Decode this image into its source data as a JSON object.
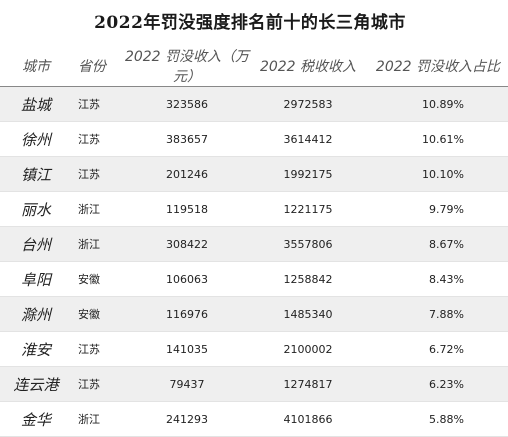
{
  "title": "2022年罚没强度排名前十的长三角城市",
  "columns": {
    "city": "城市",
    "province": "省份",
    "fine_income": "2022 罚没收入（万元）",
    "tax_income": "2022 税收收入",
    "ratio": "2022 罚没收入占比"
  },
  "rows": [
    {
      "city": "盐城",
      "province": "江苏",
      "fine_income": "323586",
      "tax_income": "2972583",
      "ratio": "10.89%"
    },
    {
      "city": "徐州",
      "province": "江苏",
      "fine_income": "383657",
      "tax_income": "3614412",
      "ratio": "10.61%"
    },
    {
      "city": "镇江",
      "province": "江苏",
      "fine_income": "201246",
      "tax_income": "1992175",
      "ratio": "10.10%"
    },
    {
      "city": "丽水",
      "province": "浙江",
      "fine_income": "119518",
      "tax_income": "1221175",
      "ratio": "9.79%"
    },
    {
      "city": "台州",
      "province": "浙江",
      "fine_income": "308422",
      "tax_income": "3557806",
      "ratio": "8.67%"
    },
    {
      "city": "阜阳",
      "province": "安徽",
      "fine_income": "106063",
      "tax_income": "1258842",
      "ratio": "8.43%"
    },
    {
      "city": "滁州",
      "province": "安徽",
      "fine_income": "116976",
      "tax_income": "1485340",
      "ratio": "7.88%"
    },
    {
      "city": "淮安",
      "province": "江苏",
      "fine_income": "141035",
      "tax_income": "2100002",
      "ratio": "6.72%"
    },
    {
      "city": "连云港",
      "province": "江苏",
      "fine_income": "79437",
      "tax_income": "1274817",
      "ratio": "6.23%"
    },
    {
      "city": "金华",
      "province": "浙江",
      "fine_income": "241293",
      "tax_income": "4101866",
      "ratio": "5.88%"
    }
  ]
}
